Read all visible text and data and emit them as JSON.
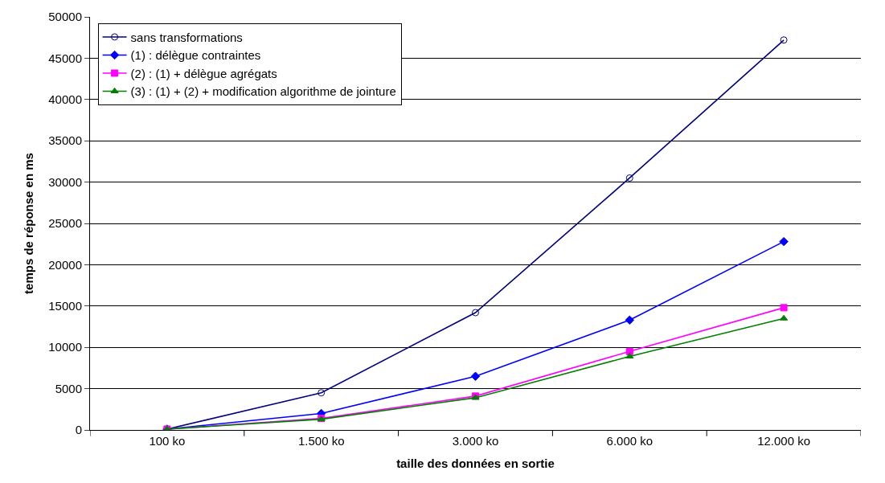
{
  "chart_data": {
    "type": "line",
    "xlabel": "taille des données en sortie",
    "ylabel": "temps de réponse en ms",
    "categories": [
      "100 ko",
      "1.500 ko",
      "3.000 ko",
      "6.000 ko",
      "12.000 ko"
    ],
    "series": [
      {
        "name": "sans transformations",
        "color": "#000080",
        "marker": "circle-open",
        "values": [
          100,
          4500,
          14200,
          30500,
          47200
        ]
      },
      {
        "name": "(1) : délègue contraintes",
        "color": "#0000ff",
        "marker": "diamond",
        "values": [
          100,
          2000,
          6500,
          13300,
          22800
        ]
      },
      {
        "name": "(2) : (1) + délègue agrégats",
        "color": "#ff00ff",
        "marker": "square",
        "values": [
          100,
          1400,
          4100,
          9500,
          14800
        ]
      },
      {
        "name": "(3) : (1) + (2) + modification algorithme de jointure",
        "color": "#008000",
        "marker": "triangle",
        "values": [
          100,
          1300,
          3900,
          8900,
          13500
        ]
      }
    ],
    "ylim": [
      0,
      50000
    ],
    "yticks": [
      0,
      5000,
      10000,
      15000,
      20000,
      25000,
      30000,
      35000,
      40000,
      45000,
      50000
    ],
    "grid": "y",
    "legend": "top left",
    "line_style": "solid"
  }
}
